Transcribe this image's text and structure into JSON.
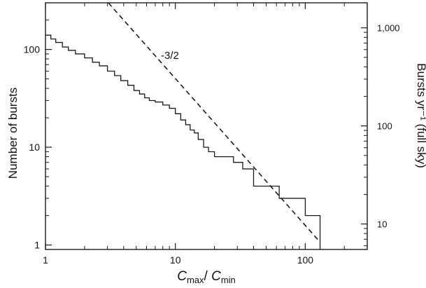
{
  "chart_data": {
    "type": "line",
    "title": "",
    "xlabel": {
      "main": "C",
      "sub1": "max",
      "slash": "/ ",
      "main2": "C",
      "sub2": "min"
    },
    "ylabel": "Number of bursts",
    "y2label": "Bursts yr⁻¹ (full sky)",
    "xscale": "log",
    "yscale": "log",
    "xlim": [
      1,
      300
    ],
    "ylim": [
      0.9,
      300
    ],
    "y2lim": [
      5.5,
      1800
    ],
    "x_ticks": [
      {
        "v": 1,
        "label": "1"
      },
      {
        "v": 10,
        "label": "10"
      },
      {
        "v": 100,
        "label": "100"
      }
    ],
    "y_ticks": [
      {
        "v": 1,
        "label": "1"
      },
      {
        "v": 10,
        "label": "10"
      },
      {
        "v": 100,
        "label": "100"
      }
    ],
    "y2_ticks": [
      {
        "v": 10,
        "label": "10"
      },
      {
        "v": 100,
        "label": "100"
      },
      {
        "v": 1000,
        "label": "1,000"
      }
    ],
    "series": [
      {
        "style": "step",
        "stroke": "#1a1a1a",
        "x": [
          1,
          1.1,
          1.2,
          1.35,
          1.5,
          1.7,
          2.0,
          2.3,
          2.6,
          3.0,
          3.4,
          3.8,
          4.3,
          4.8,
          5.3,
          5.8,
          6.3,
          7.0,
          8.0,
          9.0,
          10,
          11,
          12,
          13,
          14,
          15,
          16.5,
          18,
          20,
          24,
          28,
          33,
          40,
          63,
          100,
          130
        ],
        "values": [
          140,
          128,
          118,
          106,
          98,
          90,
          82,
          74,
          68,
          60,
          54,
          48,
          43,
          38,
          35,
          32,
          30,
          29,
          27,
          25,
          22,
          19,
          17,
          15,
          14,
          12,
          10,
          9,
          8,
          8,
          7,
          6,
          4,
          3,
          2,
          1
        ]
      },
      {
        "style": "dashed",
        "label": "-3/2",
        "stroke": "#1a1a1a",
        "x": [
          3.05,
          130
        ],
        "values": [
          300,
          1.07
        ]
      }
    ]
  }
}
